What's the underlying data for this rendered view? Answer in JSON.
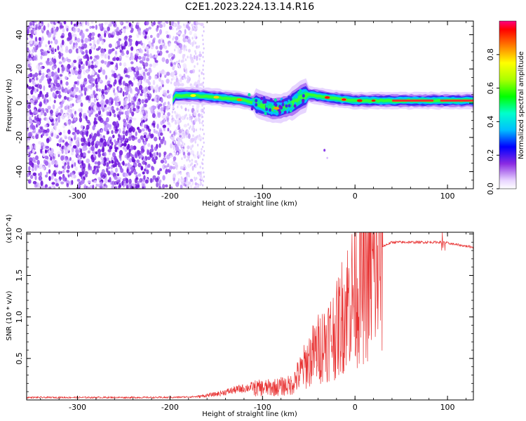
{
  "figure_title": "C2E1.2023.224.13.14.R16",
  "chart_data": [
    {
      "type": "heatmap",
      "title": "C2E1.2023.224.13.14.R16",
      "xlabel": "Height of straight line (km)",
      "ylabel": "Frequency (Hz)",
      "xlim": [
        -355,
        128
      ],
      "ylim": [
        -50,
        48
      ],
      "xticks": [
        -300,
        -200,
        -100,
        0,
        100
      ],
      "xtick_labels": [
        "-300",
        "-200",
        "-100",
        "0",
        "100"
      ],
      "yticks": [
        -40,
        -20,
        0,
        20,
        40
      ],
      "ytick_labels": [
        "-40",
        "-20",
        "0",
        "20",
        "40"
      ],
      "colorbar": {
        "label": "Normalized spectral amplitude",
        "range": [
          0,
          1
        ],
        "ticks": [
          0.0,
          0.2,
          0.4,
          0.6,
          0.8
        ],
        "tick_labels": [
          "0.0",
          "0.2",
          "0.4",
          "0.6",
          "0.8"
        ]
      },
      "ridge": {
        "description_points": [
          {
            "x": -195,
            "y": 4.5
          },
          {
            "x": -175,
            "y": 4.5
          },
          {
            "x": -150,
            "y": 3.5
          },
          {
            "x": -125,
            "y": 2
          },
          {
            "x": -110,
            "y": 0.5
          },
          {
            "x": -100,
            "y": -1.5
          },
          {
            "x": -90,
            "y": -3
          },
          {
            "x": -80,
            "y": -3
          },
          {
            "x": -70,
            "y": -1
          },
          {
            "x": -60,
            "y": 3
          },
          {
            "x": -50,
            "y": 5
          },
          {
            "x": -40,
            "y": 4
          },
          {
            "x": -25,
            "y": 3
          },
          {
            "x": -10,
            "y": 2
          },
          {
            "x": 0,
            "y": 1.5
          },
          {
            "x": 50,
            "y": 1.5
          },
          {
            "x": 80,
            "y": 1.5
          },
          {
            "x": 100,
            "y": 1.5
          },
          {
            "x": 128,
            "y": 1.5
          }
        ]
      }
    },
    {
      "type": "line",
      "xlabel": "Height of straight line (km)",
      "ylabel": "SNR (10 * v/v)",
      "scale_note": "(x10^4)",
      "xlim": [
        -355,
        128
      ],
      "ylim": [
        0,
        2.02
      ],
      "xticks": [
        -300,
        -200,
        -100,
        0,
        100
      ],
      "xtick_labels": [
        "-300",
        "-200",
        "-100",
        "0",
        "100"
      ],
      "yticks": [
        0.5,
        1.0,
        1.5,
        2.0
      ],
      "ytick_labels": [
        "0.5",
        "1.0",
        "1.5",
        "2.0"
      ],
      "series": [
        {
          "color": "#e83232",
          "envelope_x": [
            -355,
            -200,
            -170,
            -150,
            -130,
            -110,
            -90,
            -70,
            -60,
            -50,
            -40,
            -30,
            -20,
            -10,
            0,
            10,
            20,
            30,
            40,
            60,
            80,
            95,
            110,
            128
          ],
          "envelope_y": [
            0.03,
            0.03,
            0.04,
            0.07,
            0.12,
            0.16,
            0.17,
            0.2,
            0.35,
            0.55,
            0.7,
            0.85,
            0.95,
            1.3,
            1.5,
            1.62,
            1.75,
            1.85,
            1.9,
            1.9,
            1.9,
            1.9,
            1.87,
            1.84
          ]
        }
      ]
    }
  ]
}
